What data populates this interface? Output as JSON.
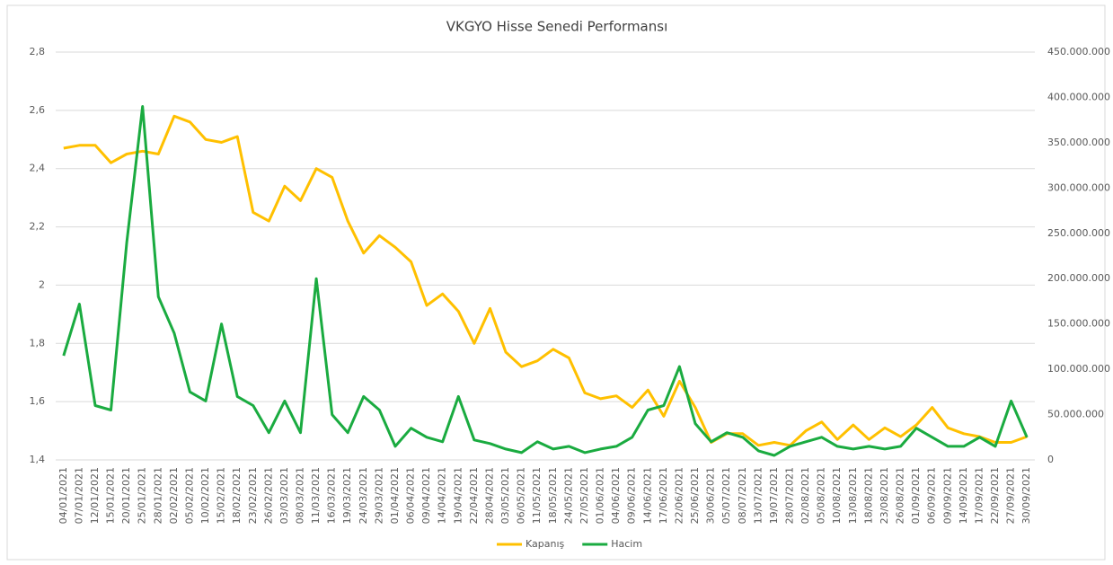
{
  "chart_data": {
    "type": "line",
    "title": "VKGYO Hisse Senedi Performansı",
    "categories": [
      "04/01/2021",
      "07/01/2021",
      "12/01/2021",
      "15/01/2021",
      "20/01/2021",
      "25/01/2021",
      "28/01/2021",
      "02/02/2021",
      "05/02/2021",
      "10/02/2021",
      "15/02/2021",
      "18/02/2021",
      "23/02/2021",
      "26/02/2021",
      "03/03/2021",
      "08/03/2021",
      "11/03/2021",
      "16/03/2021",
      "19/03/2021",
      "24/03/2021",
      "29/03/2021",
      "01/04/2021",
      "06/04/2021",
      "09/04/2021",
      "14/04/2021",
      "19/04/2021",
      "22/04/2021",
      "28/04/2021",
      "03/05/2021",
      "06/05/2021",
      "11/05/2021",
      "18/05/2021",
      "24/05/2021",
      "27/05/2021",
      "01/06/2021",
      "04/06/2021",
      "09/06/2021",
      "14/06/2021",
      "17/06/2021",
      "22/06/2021",
      "25/06/2021",
      "30/06/2021",
      "05/07/2021",
      "08/07/2021",
      "13/07/2021",
      "19/07/2021",
      "28/07/2021",
      "02/08/2021",
      "05/08/2021",
      "10/08/2021",
      "13/08/2021",
      "18/08/2021",
      "23/08/2021",
      "26/08/2021",
      "01/09/2021",
      "06/09/2021",
      "09/09/2021",
      "14/09/2021",
      "17/09/2021",
      "22/09/2021",
      "27/09/2021",
      "30/09/2021"
    ],
    "series": [
      {
        "name": "Kapanış",
        "color": "#FFC000",
        "axis": "y",
        "values": [
          2.47,
          2.48,
          2.48,
          2.42,
          2.45,
          2.46,
          2.45,
          2.58,
          2.56,
          2.5,
          2.49,
          2.51,
          2.25,
          2.22,
          2.34,
          2.29,
          2.4,
          2.37,
          2.22,
          2.11,
          2.17,
          2.13,
          2.08,
          1.93,
          1.97,
          1.91,
          1.8,
          1.92,
          1.77,
          1.72,
          1.74,
          1.78,
          1.75,
          1.63,
          1.61,
          1.62,
          1.58,
          1.64,
          1.55,
          1.67,
          1.58,
          1.46,
          1.49,
          1.49,
          1.45,
          1.46,
          1.45,
          1.5,
          1.53,
          1.47,
          1.52,
          1.47,
          1.51,
          1.48,
          1.52,
          1.58,
          1.51,
          1.49,
          1.48,
          1.46,
          1.46,
          1.48
        ]
      },
      {
        "name": "Hacim",
        "color": "#1AAB40",
        "axis": "y2",
        "values": [
          115000000,
          172000000,
          60000000,
          55000000,
          240000000,
          390000000,
          180000000,
          140000000,
          75000000,
          65000000,
          150000000,
          70000000,
          60000000,
          30000000,
          65000000,
          30000000,
          200000000,
          50000000,
          30000000,
          70000000,
          55000000,
          15000000,
          35000000,
          25000000,
          20000000,
          70000000,
          22000000,
          18000000,
          12000000,
          8000000,
          20000000,
          12000000,
          15000000,
          8000000,
          12000000,
          15000000,
          25000000,
          55000000,
          60000000,
          103000000,
          40000000,
          20000000,
          30000000,
          25000000,
          10000000,
          5000000,
          15000000,
          20000000,
          25000000,
          15000000,
          12000000,
          15000000,
          12000000,
          15000000,
          35000000,
          25000000,
          15000000,
          15000000,
          25000000,
          15000000,
          65000000,
          25000000
        ]
      }
    ],
    "ylim": [
      1.4,
      2.8
    ],
    "yticks": [
      {
        "value": 1.4,
        "label": "1,4"
      },
      {
        "value": 1.6,
        "label": "1,6"
      },
      {
        "value": 1.8,
        "label": "1,8"
      },
      2,
      {
        "value": 2.2,
        "label": "2,2"
      },
      {
        "value": 2.4,
        "label": "2,4"
      },
      {
        "value": 2.6,
        "label": "2,6"
      },
      {
        "value": 2.8,
        "label": "2,8"
      }
    ],
    "y2lim": [
      0,
      450000000
    ],
    "y2ticks": [
      0,
      {
        "value": 50000000,
        "label": "50.000.000"
      },
      {
        "value": 100000000,
        "label": "100.000.000"
      },
      {
        "value": 150000000,
        "label": "150.000.000"
      },
      {
        "value": 200000000,
        "label": "200.000.000"
      },
      {
        "value": 250000000,
        "label": "250.000.000"
      },
      {
        "value": 300000000,
        "label": "300.000.000"
      },
      {
        "value": 350000000,
        "label": "350.000.000"
      },
      {
        "value": 400000000,
        "label": "400.000.000"
      },
      {
        "value": 450000000,
        "label": "450.000.000"
      }
    ],
    "grid": true,
    "legend": "bottom"
  }
}
